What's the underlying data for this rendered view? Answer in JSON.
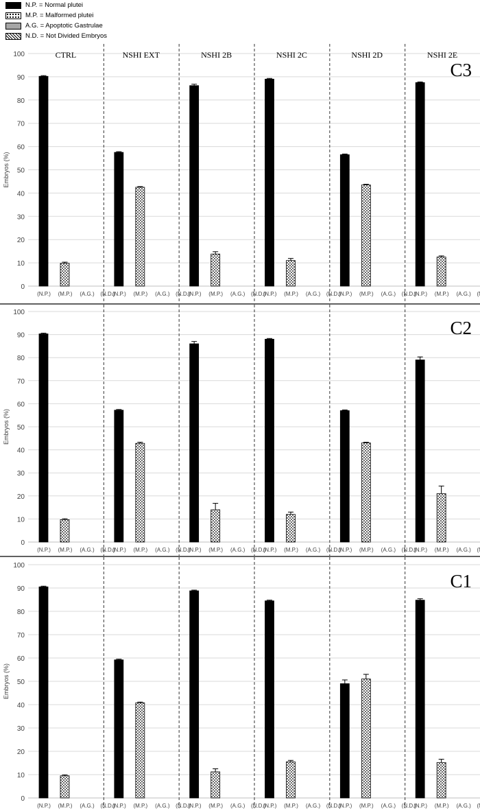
{
  "legend": [
    {
      "label": "N.P. = Normal plutei",
      "fill": "solid"
    },
    {
      "label": "M.P. = Malformed plutei",
      "fill": "dots"
    },
    {
      "label": "A.G. = Apoptotic Gastrulae",
      "fill": "gray"
    },
    {
      "label": "N.D. = Not Divided Embryos",
      "fill": "hatch"
    }
  ],
  "colors": {
    "np": "#000000",
    "ag": "#a6a6a6",
    "grid": "#d9d9d9",
    "separator": "#000000"
  },
  "chart_data": {
    "type": "bar",
    "groups": [
      "CTRL",
      "NSHI EXT",
      "NSHI 2B",
      "NSHI 2C",
      "NSHI 2D",
      "NSHI 2E"
    ],
    "categories": [
      "(N.P.)",
      "(M.P.)",
      "(A.G.)",
      "(N.D.)"
    ],
    "ylabel": "Embryos (%)",
    "ylim": [
      0,
      100
    ],
    "yticks": [
      0,
      10,
      20,
      30,
      40,
      50,
      60,
      70,
      80,
      90,
      100
    ],
    "grid": true,
    "panels": [
      {
        "label": "C3",
        "series": [
          {
            "group": "CTRL",
            "values": [
              90.2,
              9.8,
              0,
              0
            ],
            "errors": [
              0.3,
              0.5,
              0,
              0
            ]
          },
          {
            "group": "NSHI EXT",
            "values": [
              57.5,
              42.5,
              0,
              0
            ],
            "errors": [
              0.3,
              0.3,
              0,
              0
            ]
          },
          {
            "group": "NSHI 2B",
            "values": [
              86.2,
              13.8,
              0,
              0
            ],
            "errors": [
              0.6,
              1.0,
              0,
              0
            ]
          },
          {
            "group": "NSHI 2C",
            "values": [
              89.0,
              11.0,
              0,
              0
            ],
            "errors": [
              0.3,
              0.9,
              0,
              0
            ]
          },
          {
            "group": "NSHI 2D",
            "values": [
              56.5,
              43.5,
              0,
              0
            ],
            "errors": [
              0.3,
              0.3,
              0,
              0
            ]
          },
          {
            "group": "NSHI 2E",
            "values": [
              87.5,
              12.5,
              0,
              0
            ],
            "errors": [
              0.3,
              0.5,
              0,
              0
            ]
          }
        ]
      },
      {
        "label": "C2",
        "series": [
          {
            "group": "CTRL",
            "values": [
              90.3,
              9.7,
              0,
              0
            ],
            "errors": [
              0.3,
              0.4,
              0,
              0
            ]
          },
          {
            "group": "NSHI EXT",
            "values": [
              57.2,
              42.8,
              0,
              0
            ],
            "errors": [
              0.3,
              0.5,
              0,
              0
            ]
          },
          {
            "group": "NSHI 2B",
            "values": [
              86.0,
              14.0,
              0,
              0
            ],
            "errors": [
              1.0,
              2.8,
              0,
              0
            ]
          },
          {
            "group": "NSHI 2C",
            "values": [
              88.0,
              12.0,
              0,
              0
            ],
            "errors": [
              0.3,
              1.0,
              0,
              0
            ]
          },
          {
            "group": "NSHI 2D",
            "values": [
              57.0,
              43.0,
              0,
              0
            ],
            "errors": [
              0.3,
              0.3,
              0,
              0
            ]
          },
          {
            "group": "NSHI 2E",
            "values": [
              79.0,
              21.0,
              0,
              0
            ],
            "errors": [
              1.3,
              3.3,
              0,
              0
            ]
          }
        ]
      },
      {
        "label": "C1",
        "series": [
          {
            "group": "CTRL",
            "values": [
              90.5,
              9.5,
              0,
              0
            ],
            "errors": [
              0.3,
              0.4,
              0,
              0
            ]
          },
          {
            "group": "NSHI EXT",
            "values": [
              59.2,
              40.8,
              0,
              0
            ],
            "errors": [
              0.3,
              0.3,
              0,
              0
            ]
          },
          {
            "group": "NSHI 2B",
            "values": [
              88.8,
              11.2,
              0,
              0
            ],
            "errors": [
              0.3,
              1.3,
              0,
              0
            ]
          },
          {
            "group": "NSHI 2C",
            "values": [
              84.5,
              15.5,
              0,
              0
            ],
            "errors": [
              0.3,
              0.6,
              0,
              0
            ]
          },
          {
            "group": "NSHI 2D",
            "values": [
              49.0,
              51.0,
              0,
              0
            ],
            "errors": [
              1.6,
              2.0,
              0,
              0
            ]
          },
          {
            "group": "NSHI 2E",
            "values": [
              84.8,
              15.2,
              0,
              0
            ],
            "errors": [
              0.6,
              1.4,
              0,
              0
            ]
          }
        ]
      }
    ]
  }
}
